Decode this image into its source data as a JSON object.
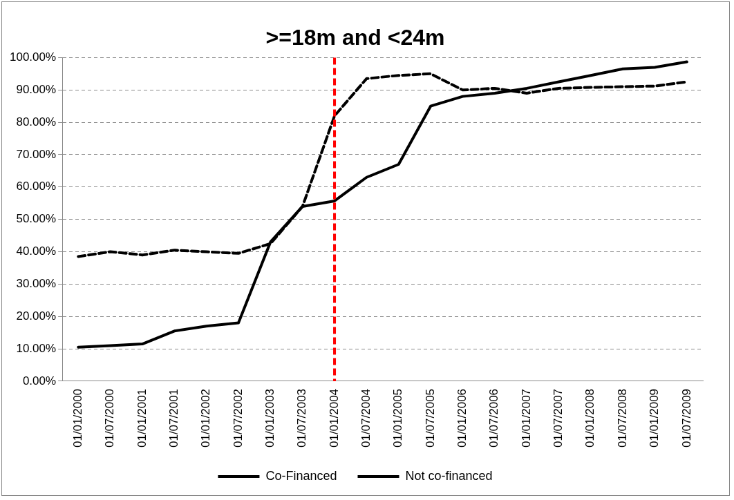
{
  "chart_data": {
    "type": "line",
    "title": ">=18m and <24m",
    "categories": [
      "01/01/2000",
      "01/07/2000",
      "01/01/2001",
      "01/07/2001",
      "01/01/2002",
      "01/07/2002",
      "01/01/2003",
      "01/07/2003",
      "01/01/2004",
      "01/07/2004",
      "01/01/2005",
      "01/07/2005",
      "01/01/2006",
      "01/07/2006",
      "01/01/2007",
      "01/07/2007",
      "01/01/2008",
      "01/07/2008",
      "01/01/2009",
      "01/07/2009"
    ],
    "series": [
      {
        "name": "Co-Financed",
        "color": "#000000",
        "line_style": "solid",
        "values": [
          10.5,
          11,
          11.5,
          15.5,
          17,
          18,
          43,
          54,
          55.7,
          63,
          67,
          85,
          88,
          89,
          90.5,
          92.5,
          94.5,
          96.5,
          97,
          98.7
        ]
      },
      {
        "name": "Not co-financed",
        "color": "#000000",
        "line_style": "dashed",
        "values": [
          38.5,
          40,
          39,
          40.5,
          40,
          39.5,
          42.5,
          54,
          82,
          93.5,
          94.5,
          95,
          90,
          90.5,
          89,
          90.5,
          90.8,
          91,
          91.2,
          92.5
        ]
      }
    ],
    "ylim": [
      0,
      100
    ],
    "yticks": [
      {
        "value": 0,
        "label": "0.00%"
      },
      {
        "value": 10,
        "label": "10.00%"
      },
      {
        "value": 20,
        "label": "20.00%"
      },
      {
        "value": 30,
        "label": "30.00%"
      },
      {
        "value": 40,
        "label": "40.00%"
      },
      {
        "value": 50,
        "label": "50.00%"
      },
      {
        "value": 60,
        "label": "60.00%"
      },
      {
        "value": 70,
        "label": "70.00%"
      },
      {
        "value": 80,
        "label": "80.00%"
      },
      {
        "value": 90,
        "label": "90.00%"
      },
      {
        "value": 100,
        "label": "100.00%"
      }
    ],
    "ref_lines": [
      {
        "axis": "x",
        "value": "01/01/2004",
        "color": "#ff0000",
        "line_style": "dashed"
      }
    ],
    "grid": "y",
    "legend": "bottom",
    "marker": "none"
  }
}
